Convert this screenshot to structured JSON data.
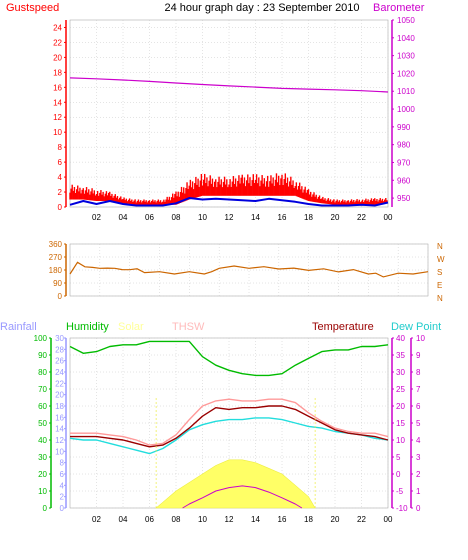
{
  "header": {
    "left_title": "Gustspeed",
    "center_title": "24 hour graph day : 23 September 2010",
    "right_title": "Barometer"
  },
  "colors": {
    "gust": "#ff0000",
    "wind": "#0000dd",
    "barometer": "#cc00cc",
    "direction": "#cc6600",
    "rain": "#9999ff",
    "humidity": "#00bb00",
    "solar": "#ffff66",
    "thsw": "#ff9999",
    "temperature": "#990000",
    "dewpoint": "#22dddd",
    "grid": "#c8c8c8",
    "axis_left": "#ff0000",
    "axis_right": "#cc00cc"
  },
  "x_axis": {
    "tick_labels": [
      "02",
      "04",
      "06",
      "08",
      "10",
      "12",
      "14",
      "16",
      "18",
      "20",
      "22",
      "00"
    ]
  },
  "chart_data": [
    {
      "type": "line",
      "name": "wind",
      "x_range": [
        0,
        24
      ],
      "left_axis": {
        "label": "Gustspeed",
        "ylim": [
          0,
          25
        ],
        "ticks": [
          0,
          2,
          4,
          6,
          8,
          10,
          12,
          14,
          16,
          18,
          20,
          22,
          24
        ]
      },
      "right_axis": {
        "label": "Barometer",
        "ylim": [
          945,
          1050
        ],
        "ticks": [
          950,
          960,
          970,
          980,
          990,
          1000,
          1010,
          1020,
          1030,
          1040,
          1050
        ]
      },
      "series": [
        {
          "name": "Gustspeed",
          "axis": "left",
          "color": "#ff0000",
          "kind": "band",
          "x": [
            0,
            1,
            2,
            3,
            4,
            5,
            6,
            7,
            8,
            9,
            10,
            11,
            12,
            13,
            14,
            15,
            16,
            17,
            18,
            19,
            20,
            21,
            22,
            23,
            24
          ],
          "low": [
            1,
            1,
            0.8,
            0.8,
            0.5,
            0.3,
            0.3,
            0.3,
            0.3,
            1,
            1.5,
            1.5,
            1.5,
            1.5,
            1.5,
            1.5,
            1.5,
            1.5,
            0.8,
            0.5,
            0.3,
            0.3,
            0.3,
            0.3,
            0.5
          ],
          "high": [
            3.3,
            3,
            2.6,
            2.2,
            1.4,
            1.1,
            1.1,
            1.1,
            2.3,
            3.9,
            4.9,
            4.4,
            4.4,
            4.7,
            4.8,
            4.5,
            5.2,
            4,
            2.6,
            1.5,
            1.1,
            1.1,
            1.2,
            1.3,
            1.3
          ]
        },
        {
          "name": "Windspeed",
          "axis": "left",
          "color": "#0000dd",
          "kind": "line",
          "x": [
            0,
            1,
            2,
            3,
            4,
            5,
            6,
            7,
            8,
            9,
            10,
            11,
            12,
            13,
            14,
            15,
            16,
            17,
            18,
            19,
            20,
            21,
            22,
            23,
            24
          ],
          "y": [
            0.3,
            0.8,
            0.4,
            0.8,
            0.4,
            0.2,
            0.2,
            0.2,
            0.5,
            1.2,
            1.0,
            1.1,
            1.0,
            0.9,
            0.8,
            1.1,
            0.9,
            0.7,
            0.4,
            0.2,
            0.2,
            0.2,
            0.3,
            0.2,
            0.6
          ]
        },
        {
          "name": "Barometer",
          "axis": "right",
          "color": "#cc00cc",
          "kind": "line",
          "x": [
            0,
            2,
            4,
            6,
            8,
            10,
            12,
            14,
            16,
            18,
            20,
            22,
            24
          ],
          "y": [
            1017.5,
            1017,
            1016.3,
            1015.5,
            1014.6,
            1013.8,
            1013.0,
            1012.3,
            1011.6,
            1011.2,
            1010.8,
            1010.3,
            1009.6
          ]
        }
      ]
    },
    {
      "type": "line",
      "name": "direction",
      "x_range": [
        0,
        24
      ],
      "left_axis": {
        "ylim": [
          0,
          360
        ],
        "ticks": [
          0,
          90,
          180,
          270,
          360
        ]
      },
      "right_axis": {
        "tick_labels": [
          "N",
          "W",
          "S",
          "E",
          "N"
        ]
      },
      "series": [
        {
          "name": "Wind Direction",
          "color": "#cc6600",
          "x": [
            0,
            0.5,
            1,
            1.5,
            2,
            2.5,
            3,
            3.5,
            4,
            4.5,
            5,
            6,
            7,
            8,
            9,
            9.5,
            10,
            11,
            12,
            13,
            14,
            15,
            16,
            17,
            18,
            19,
            20,
            20.5,
            21,
            22,
            23,
            24
          ],
          "y": [
            160,
            225,
            210,
            190,
            200,
            185,
            200,
            175,
            190,
            180,
            170,
            160,
            160,
            160,
            160,
            160,
            200,
            200,
            200,
            195,
            195,
            185,
            185,
            180,
            175,
            175,
            160,
            150,
            140,
            150,
            160,
            160
          ]
        }
      ]
    },
    {
      "type": "line",
      "name": "temperature-humidity",
      "x_range": [
        0,
        24
      ],
      "labels": [
        "Rainfall",
        "Humidity",
        "Solar",
        "THSW",
        "Temperature",
        "Dew Point"
      ],
      "left_axis": {
        "label": "Humidity",
        "ylim": [
          0,
          100
        ],
        "ticks": [
          0,
          10,
          20,
          30,
          40,
          50,
          60,
          70,
          80,
          90,
          100
        ]
      },
      "left_inner_axis": {
        "label": "Rainfall",
        "ylim": [
          0,
          30
        ],
        "ticks": [
          0,
          2,
          4,
          6,
          8,
          10,
          12,
          14,
          16,
          18,
          20,
          22,
          24,
          26,
          28,
          30
        ]
      },
      "right_inner_axis": {
        "label": "Temperature",
        "ylim": [
          -10,
          40
        ],
        "ticks": [
          -10,
          -5,
          0,
          5,
          10,
          15,
          20,
          25,
          30,
          35,
          40
        ]
      },
      "right_axis": {
        "label": "Dew Point",
        "ylim": [
          0,
          10
        ],
        "ticks": [
          0,
          1,
          2,
          3,
          4,
          5,
          6,
          7,
          8,
          9,
          10
        ]
      },
      "annotations": [
        "sunrise",
        "sunset"
      ],
      "series": [
        {
          "name": "Humidity",
          "axis": "left",
          "color": "#00bb00",
          "x": [
            0,
            1,
            2,
            3,
            4,
            5,
            6,
            7,
            8,
            9,
            10,
            11,
            12,
            13,
            14,
            15,
            16,
            17,
            18,
            19,
            20,
            21,
            22,
            23,
            24
          ],
          "y": [
            95,
            91,
            92,
            95,
            96,
            96,
            98,
            98,
            98,
            98,
            89,
            84,
            81,
            79,
            78,
            78,
            79,
            84,
            88,
            92,
            93,
            93,
            95,
            95,
            96
          ]
        },
        {
          "name": "Temperature",
          "axis": "right_inner",
          "color": "#990000",
          "x": [
            0,
            1,
            2,
            3,
            4,
            5,
            6,
            7,
            8,
            9,
            10,
            11,
            12,
            13,
            14,
            15,
            16,
            17,
            18,
            19,
            20,
            21,
            22,
            23,
            24
          ],
          "y": [
            11,
            11,
            11,
            10.5,
            10,
            9,
            8,
            8.5,
            10.5,
            13.5,
            17,
            19.5,
            19,
            19.5,
            19.5,
            20,
            20,
            19,
            17,
            15,
            13,
            12,
            11.5,
            11,
            10
          ]
        },
        {
          "name": "THSW",
          "axis": "right_inner",
          "color": "#ff9999",
          "x": [
            0,
            1,
            2,
            3,
            4,
            5,
            6,
            7,
            8,
            9,
            10,
            11,
            12,
            13,
            14,
            15,
            16,
            17,
            18,
            19,
            20,
            21,
            22,
            23,
            24
          ],
          "y": [
            12,
            12,
            12,
            11.5,
            11,
            10,
            8.5,
            9,
            11.5,
            16,
            20,
            21.5,
            22,
            21.5,
            21.5,
            22,
            22,
            21,
            18,
            15.5,
            13.5,
            12.5,
            12,
            12,
            11
          ]
        },
        {
          "name": "Dew Point",
          "axis": "right",
          "color": "#22dddd",
          "x": [
            0,
            1,
            2,
            3,
            4,
            5,
            6,
            7,
            8,
            9,
            10,
            11,
            12,
            13,
            14,
            15,
            16,
            17,
            18,
            19,
            20,
            21,
            22,
            23,
            24
          ],
          "y": [
            4.1,
            4.0,
            4.0,
            3.8,
            3.6,
            3.4,
            3.2,
            3.5,
            4.0,
            4.6,
            4.9,
            5.1,
            5.2,
            5.2,
            5.3,
            5.3,
            5.2,
            5.0,
            4.8,
            4.7,
            4.5,
            4.4,
            4.3,
            4.1,
            4.0
          ]
        },
        {
          "name": "Solar",
          "axis": "left_inner",
          "color": "#ffff66",
          "kind": "area",
          "x": [
            6.5,
            7,
            8,
            9,
            10,
            11,
            12,
            13,
            14,
            15,
            16,
            17,
            18,
            18.5
          ],
          "y": [
            0,
            1,
            3,
            4.5,
            6,
            7.5,
            8.5,
            8.5,
            8,
            7,
            6,
            4,
            2,
            0
          ]
        },
        {
          "name": "UV",
          "axis": "left_inner",
          "color": "#cc00cc",
          "x": [
            8.5,
            9,
            10,
            11,
            12,
            13,
            14,
            15,
            16,
            17,
            17.5
          ],
          "y": [
            0,
            0.7,
            1.8,
            3,
            3.6,
            3.9,
            3.6,
            2.8,
            1.8,
            0.7,
            0
          ]
        }
      ]
    }
  ]
}
